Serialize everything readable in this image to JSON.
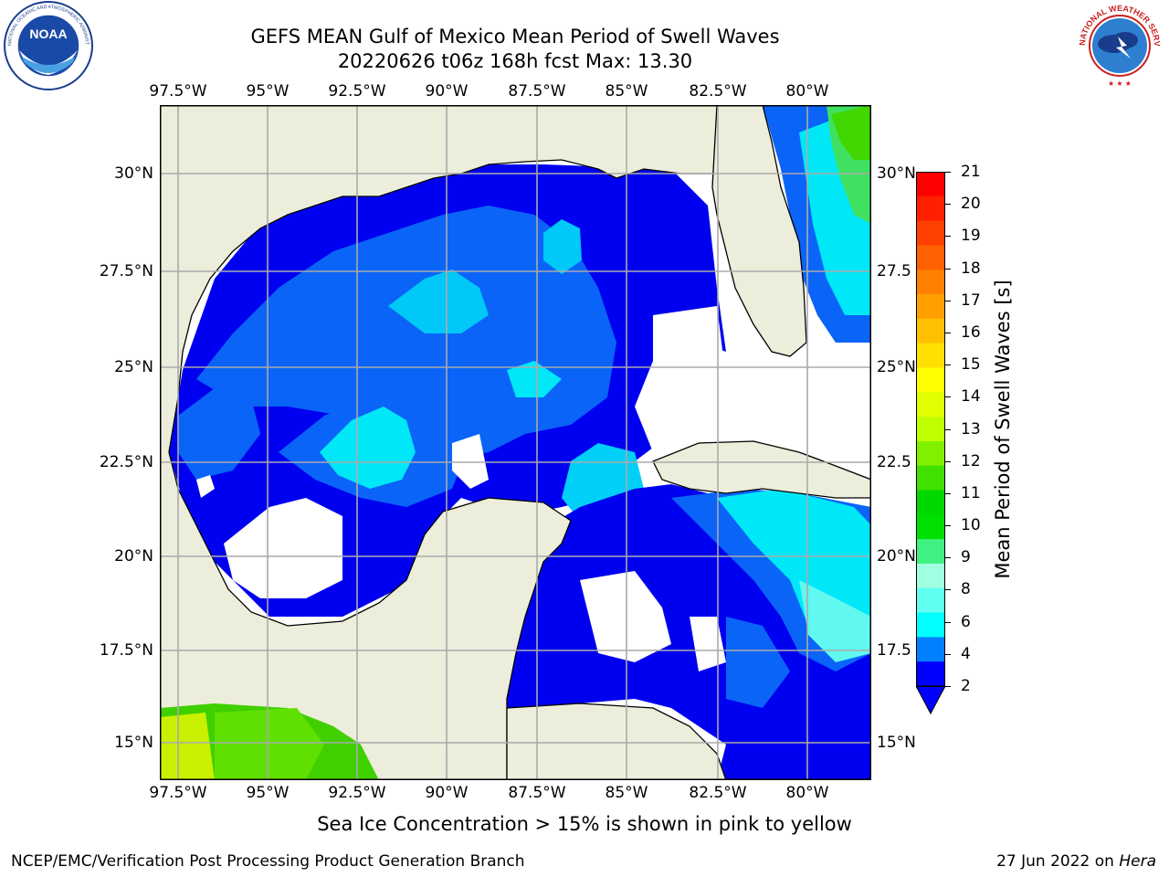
{
  "header": {
    "title_line1": "GEFS MEAN Gulf of Mexico Mean Period of Swell Waves",
    "title_line2": "20220626 t06z 168h fcst   Max: 13.30"
  },
  "logos": {
    "noaa": {
      "text": "NOAA",
      "ring_text": "NATIONAL OCEANIC AND ATMOSPHERIC ADMINISTRATION · U.S. DEPARTMENT OF COMMERCE"
    },
    "nws": {
      "ring_text": "NATIONAL WEATHER SERVICE"
    }
  },
  "map": {
    "lon_labels": [
      "97.5°W",
      "95°W",
      "92.5°W",
      "90°W",
      "87.5°W",
      "85°W",
      "82.5°W",
      "80°W"
    ],
    "lat_labels_left": [
      "30°N",
      "27.5°N",
      "25°N",
      "22.5°N",
      "20°N",
      "17.5°N",
      "15°N"
    ],
    "lat_labels_right": [
      "30°N",
      "27.5",
      "25°N",
      "22.5",
      "20°N",
      "17.5",
      "15°N"
    ],
    "colors": {
      "land": "#EDEDDC",
      "gridline": "#AAAAAA",
      "coast": "#000000",
      "no_data": "#FFFFFF"
    }
  },
  "colorbar": {
    "label": "Mean Period of Swell Waves [s]",
    "ticks": [
      "21",
      "20",
      "19",
      "18",
      "17",
      "16",
      "15",
      "14",
      "13",
      "12",
      "11",
      "10",
      "9",
      "8",
      "6",
      "4",
      "2"
    ],
    "colors": [
      "#FF0000",
      "#FF2000",
      "#FF4000",
      "#FF6000",
      "#FF8000",
      "#FFA000",
      "#FFC000",
      "#FFE000",
      "#FFFF00",
      "#E0FF00",
      "#C0FF00",
      "#80F000",
      "#40E000",
      "#00D800",
      "#00E000",
      "#40F080",
      "#A0FFE0",
      "#60FFF0",
      "#00FFFF",
      "#0080FF",
      "#0000FF"
    ]
  },
  "caption": "Sea Ice Concentration > 15% is shown in pink to yellow",
  "footer": {
    "left": "NCEP/EMC/Verification Post Processing Product Generation Branch",
    "right_date": "27 Jun 2022 on ",
    "right_host": "Hera"
  }
}
